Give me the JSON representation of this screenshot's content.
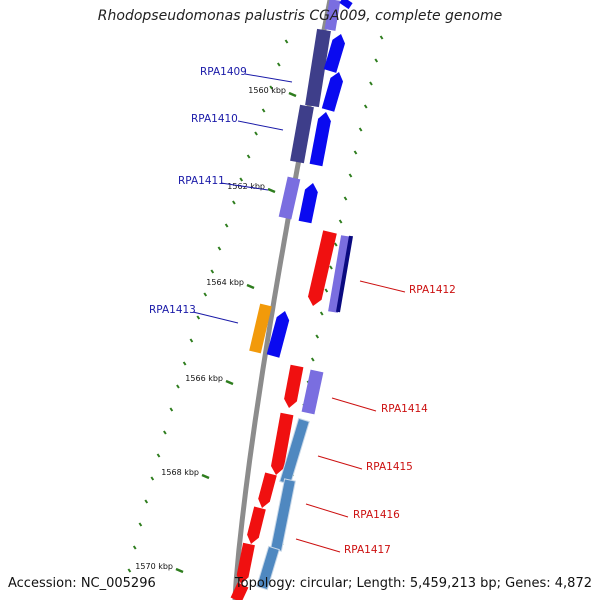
{
  "title": "Rhodopseudomonas palustris CGA009, complete genome",
  "footer": {
    "accession": "Accession: NC_005296",
    "topology": "Topology: circular; Length: 5,459,213 bp; Genes: 4,872"
  },
  "colors": {
    "backbone": "#8c8c8c",
    "tick": "#2e7d1e",
    "label_forward": "#1a1aa8",
    "label_reverse": "#cc1010",
    "gene_blue": "#0a0af0",
    "gene_purple": "#7a6ee0",
    "gene_darkpurple": "#3e3e8a",
    "gene_red": "#f01010",
    "gene_orange": "#f29a0a",
    "gene_steel": "#4f88c0",
    "gene_navy": "#0a0a80"
  },
  "kbp_ticks": [
    {
      "text": "1560 kbp"
    },
    {
      "text": "1562 kbp"
    },
    {
      "text": "1564 kbp"
    },
    {
      "text": "1566 kbp"
    },
    {
      "text": "1568 kbp"
    },
    {
      "text": "1570 kbp"
    }
  ],
  "gene_labels": [
    {
      "text": "RPA1409",
      "strand": "forward"
    },
    {
      "text": "RPA1410",
      "strand": "forward"
    },
    {
      "text": "RPA1411",
      "strand": "forward"
    },
    {
      "text": "RPA1412",
      "strand": "reverse"
    },
    {
      "text": "RPA1413",
      "strand": "forward"
    },
    {
      "text": "RPA1414",
      "strand": "reverse"
    },
    {
      "text": "RPA1415",
      "strand": "reverse"
    },
    {
      "text": "RPA1416",
      "strand": "reverse"
    },
    {
      "text": "RPA1417",
      "strand": "reverse"
    }
  ]
}
